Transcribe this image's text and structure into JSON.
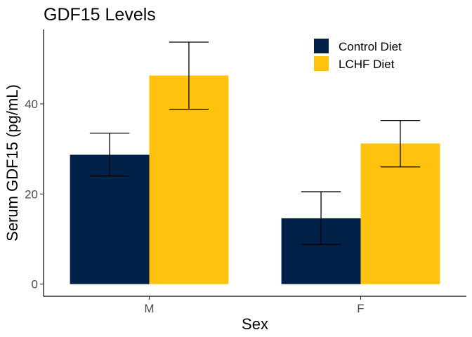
{
  "chart_data": {
    "type": "bar",
    "title": "GDF15 Levels",
    "xlabel": "Sex",
    "ylabel": "Serum GDF15 (pg/mL)",
    "categories": [
      "M",
      "F"
    ],
    "yticks": [
      0,
      20,
      40
    ],
    "ylim": [
      -2.7,
      56.5
    ],
    "grid": false,
    "legend_position": "top-right",
    "series": [
      {
        "name": "Control Diet",
        "color": "#002147",
        "values": [
          28.7,
          14.6
        ],
        "error_low": [
          24.0,
          8.8
        ],
        "error_high": [
          33.5,
          20.5
        ]
      },
      {
        "name": "LCHF Diet",
        "color": "#FFC20E",
        "values": [
          46.3,
          31.2
        ],
        "error_low": [
          38.8,
          26.0
        ],
        "error_high": [
          53.7,
          36.3
        ]
      }
    ]
  }
}
